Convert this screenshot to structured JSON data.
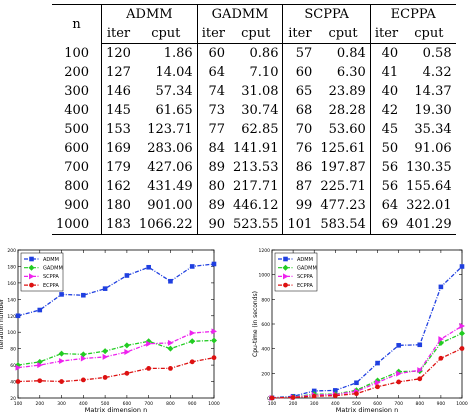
{
  "table": {
    "corner": "n",
    "methods": [
      "ADMM",
      "GADMM",
      "SCPPA",
      "ECPPA"
    ],
    "sub": [
      "iter",
      "cput"
    ],
    "rows": [
      [
        "100",
        "120",
        "1.86",
        "60",
        "0.86",
        "57",
        "0.84",
        "40",
        "0.58"
      ],
      [
        "200",
        "127",
        "14.04",
        "64",
        "7.10",
        "60",
        "6.30",
        "41",
        "4.32"
      ],
      [
        "300",
        "146",
        "57.34",
        "74",
        "31.08",
        "65",
        "23.89",
        "40",
        "14.37"
      ],
      [
        "400",
        "145",
        "61.65",
        "73",
        "30.74",
        "68",
        "28.28",
        "42",
        "19.30"
      ],
      [
        "500",
        "153",
        "123.71",
        "77",
        "62.85",
        "70",
        "53.60",
        "45",
        "35.34"
      ],
      [
        "600",
        "169",
        "283.06",
        "84",
        "141.91",
        "76",
        "125.61",
        "50",
        "91.06"
      ],
      [
        "700",
        "179",
        "427.06",
        "89",
        "213.53",
        "86",
        "197.87",
        "56",
        "130.35"
      ],
      [
        "800",
        "162",
        "431.49",
        "80",
        "217.71",
        "87",
        "225.71",
        "56",
        "155.64"
      ],
      [
        "900",
        "180",
        "901.00",
        "89",
        "446.12",
        "99",
        "477.23",
        "64",
        "322.01"
      ],
      [
        "1000",
        "183",
        "1066.22",
        "90",
        "523.55",
        "101",
        "583.54",
        "69",
        "401.29"
      ]
    ]
  },
  "series_colors": [
    "#1f3fe0",
    "#22cc22",
    "#ee22ee",
    "#dd1111"
  ],
  "chart_data": [
    {
      "type": "line",
      "title": "",
      "xlabel": "Matrix dimension n",
      "ylabel": "Iteration number",
      "x": [
        100,
        200,
        300,
        400,
        500,
        600,
        700,
        800,
        900,
        1000
      ],
      "xticks": [
        "100",
        "200",
        "300",
        "400",
        "500",
        "600",
        "700",
        "800",
        "900",
        "1000"
      ],
      "ylim": [
        20,
        200
      ],
      "yticks": [
        "20",
        "40",
        "60",
        "80",
        "100",
        "120",
        "140",
        "160",
        "180",
        "200"
      ],
      "legend_position": "top-left",
      "series": [
        {
          "name": "ADMM",
          "values": [
            120,
            127,
            146,
            145,
            153,
            169,
            179,
            162,
            180,
            183
          ]
        },
        {
          "name": "GADMM",
          "values": [
            60,
            64,
            74,
            73,
            77,
            84,
            89,
            80,
            89,
            90
          ]
        },
        {
          "name": "SCPPA",
          "values": [
            57,
            60,
            65,
            68,
            70,
            76,
            86,
            87,
            99,
            101
          ]
        },
        {
          "name": "ECPPA",
          "values": [
            40,
            41,
            40,
            42,
            45,
            50,
            56,
            56,
            64,
            69
          ]
        }
      ]
    },
    {
      "type": "line",
      "title": "",
      "xlabel": "Matrix dimension n",
      "ylabel": "Cpu-time (in seconds)",
      "x": [
        100,
        200,
        300,
        400,
        500,
        600,
        700,
        800,
        900,
        1000
      ],
      "xticks": [
        "100",
        "200",
        "300",
        "400",
        "500",
        "600",
        "700",
        "800",
        "900",
        "1000"
      ],
      "ylim": [
        0,
        1200
      ],
      "yticks": [
        "0",
        "200",
        "400",
        "600",
        "800",
        "1000",
        "1200"
      ],
      "legend_position": "top-left",
      "series": [
        {
          "name": "ADMM",
          "values": [
            1.86,
            14.04,
            57.34,
            61.65,
            123.71,
            283.06,
            427.06,
            431.49,
            901.0,
            1066.22
          ]
        },
        {
          "name": "GADMM",
          "values": [
            0.86,
            7.1,
            31.08,
            30.74,
            62.85,
            141.91,
            213.53,
            217.71,
            446.12,
            523.55
          ]
        },
        {
          "name": "SCPPA",
          "values": [
            0.84,
            6.3,
            23.89,
            28.28,
            53.6,
            125.61,
            197.87,
            225.71,
            477.23,
            583.54
          ]
        },
        {
          "name": "ECPPA",
          "values": [
            0.58,
            4.32,
            14.37,
            19.3,
            35.34,
            91.06,
            130.35,
            155.64,
            322.01,
            401.29
          ]
        }
      ]
    }
  ]
}
